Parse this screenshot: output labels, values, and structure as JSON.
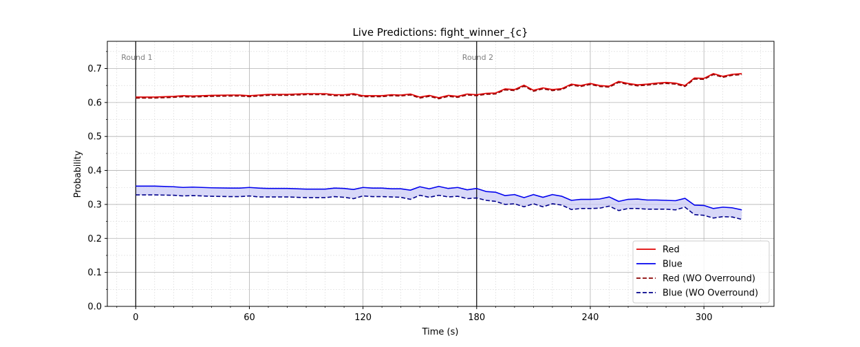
{
  "chart_data": {
    "type": "line",
    "title": "Live Predictions: fight_winner_{c}",
    "xlabel": "Time (s)",
    "ylabel": "Probability",
    "xlim": [
      -15,
      337
    ],
    "ylim": [
      0,
      0.78
    ],
    "xticks": [
      0,
      60,
      120,
      180,
      240,
      300
    ],
    "yticks": [
      0.0,
      0.1,
      0.2,
      0.3,
      0.4,
      0.5,
      0.6,
      0.7
    ],
    "ytick_labels": [
      "0.0",
      "0.1",
      "0.2",
      "0.3",
      "0.4",
      "0.5",
      "0.6",
      "0.7"
    ],
    "minor_x_step": 10,
    "minor_y_step": 0.05,
    "grid": true,
    "legend_position": "bottom-right",
    "rounds": [
      {
        "x": 0,
        "label": "Round 1"
      },
      {
        "x": 180,
        "label": "Round 2"
      }
    ],
    "colors": {
      "red": "#e00000",
      "blue": "#0000ee",
      "red_wo": "#8b0000",
      "blue_wo": "#00008b",
      "red_fill": "#f2b0b0",
      "blue_fill": "#c8c8f5"
    },
    "x": [
      0,
      10,
      20,
      25,
      30,
      40,
      50,
      55,
      60,
      65,
      70,
      80,
      90,
      95,
      100,
      105,
      110,
      115,
      120,
      125,
      130,
      135,
      140,
      145,
      150,
      155,
      160,
      165,
      170,
      175,
      180,
      185,
      190,
      195,
      200,
      205,
      210,
      215,
      220,
      225,
      230,
      235,
      240,
      245,
      250,
      255,
      260,
      265,
      270,
      275,
      280,
      285,
      290,
      295,
      300,
      305,
      310,
      315,
      320
    ],
    "series": [
      {
        "name": "Red",
        "key": "red",
        "dash": false,
        "values": [
          0.616,
          0.616,
          0.618,
          0.62,
          0.619,
          0.621,
          0.622,
          0.622,
          0.62,
          0.622,
          0.624,
          0.624,
          0.626,
          0.626,
          0.626,
          0.623,
          0.623,
          0.626,
          0.62,
          0.62,
          0.62,
          0.623,
          0.622,
          0.625,
          0.616,
          0.621,
          0.614,
          0.621,
          0.618,
          0.625,
          0.623,
          0.627,
          0.628,
          0.64,
          0.638,
          0.651,
          0.636,
          0.643,
          0.638,
          0.641,
          0.654,
          0.65,
          0.656,
          0.65,
          0.648,
          0.662,
          0.656,
          0.652,
          0.654,
          0.657,
          0.659,
          0.657,
          0.65,
          0.672,
          0.671,
          0.685,
          0.677,
          0.683,
          0.685
        ]
      },
      {
        "name": "Blue",
        "key": "blue",
        "dash": false,
        "values": [
          0.354,
          0.354,
          0.352,
          0.35,
          0.351,
          0.349,
          0.348,
          0.348,
          0.35,
          0.348,
          0.347,
          0.347,
          0.345,
          0.345,
          0.345,
          0.348,
          0.347,
          0.344,
          0.35,
          0.348,
          0.348,
          0.346,
          0.346,
          0.342,
          0.352,
          0.346,
          0.353,
          0.347,
          0.35,
          0.343,
          0.347,
          0.338,
          0.336,
          0.326,
          0.329,
          0.32,
          0.329,
          0.321,
          0.329,
          0.324,
          0.312,
          0.315,
          0.315,
          0.316,
          0.322,
          0.309,
          0.315,
          0.316,
          0.313,
          0.313,
          0.312,
          0.311,
          0.318,
          0.298,
          0.297,
          0.288,
          0.292,
          0.29,
          0.284
        ]
      },
      {
        "name": "Red (WO Overround)",
        "key": "red_wo",
        "dash": true,
        "values": [
          0.613,
          0.613,
          0.615,
          0.617,
          0.616,
          0.618,
          0.619,
          0.619,
          0.617,
          0.619,
          0.621,
          0.621,
          0.623,
          0.623,
          0.623,
          0.62,
          0.62,
          0.623,
          0.617,
          0.617,
          0.617,
          0.62,
          0.619,
          0.622,
          0.613,
          0.618,
          0.611,
          0.618,
          0.615,
          0.622,
          0.62,
          0.624,
          0.625,
          0.637,
          0.635,
          0.648,
          0.633,
          0.64,
          0.635,
          0.638,
          0.651,
          0.647,
          0.653,
          0.647,
          0.645,
          0.659,
          0.653,
          0.649,
          0.651,
          0.654,
          0.656,
          0.654,
          0.647,
          0.669,
          0.668,
          0.682,
          0.674,
          0.68,
          0.682
        ]
      },
      {
        "name": "Blue (WO Overround)",
        "key": "blue_wo",
        "dash": true,
        "values": [
          0.328,
          0.328,
          0.327,
          0.325,
          0.326,
          0.324,
          0.323,
          0.323,
          0.325,
          0.322,
          0.322,
          0.322,
          0.32,
          0.32,
          0.32,
          0.323,
          0.321,
          0.317,
          0.325,
          0.323,
          0.323,
          0.322,
          0.321,
          0.315,
          0.327,
          0.321,
          0.327,
          0.322,
          0.324,
          0.317,
          0.319,
          0.312,
          0.309,
          0.3,
          0.302,
          0.293,
          0.302,
          0.293,
          0.302,
          0.298,
          0.285,
          0.288,
          0.288,
          0.289,
          0.295,
          0.282,
          0.288,
          0.288,
          0.286,
          0.286,
          0.286,
          0.284,
          0.292,
          0.27,
          0.268,
          0.26,
          0.264,
          0.263,
          0.256
        ]
      }
    ]
  }
}
